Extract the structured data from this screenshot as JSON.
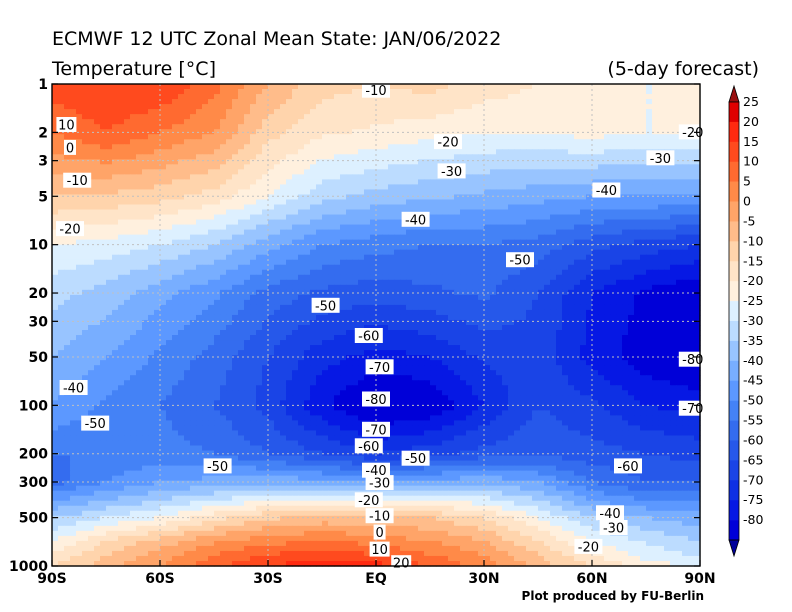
{
  "chart_data": {
    "type": "heatmap",
    "title": "ECMWF 12 UTC Zonal Mean State: JAN/06/2022",
    "subtitle": "Temperature [°C]",
    "forecast_note": "(5-day forecast)",
    "credit": "Plot produced by FU-Berlin",
    "xlabel": "",
    "ylabel": "",
    "x_ticks": [
      "90S",
      "60S",
      "30S",
      "EQ",
      "30N",
      "60N",
      "90N"
    ],
    "x_tick_values": [
      -90,
      -60,
      -30,
      0,
      30,
      60,
      90
    ],
    "y_ticks": [
      "1",
      "2",
      "3",
      "5",
      "10",
      "20",
      "30",
      "50",
      "100",
      "200",
      "300",
      "500",
      "1000"
    ],
    "y_tick_values": [
      1,
      2,
      3,
      5,
      10,
      20,
      30,
      50,
      100,
      200,
      300,
      500,
      1000
    ],
    "y_scale": "log",
    "y_inverted": true,
    "xlim": [
      -90,
      90
    ],
    "ylim": [
      1000,
      1
    ],
    "grid": true,
    "colorbar": {
      "labels": [
        "25",
        "20",
        "15",
        "10",
        "5",
        "0",
        "-5",
        "-10",
        "-15",
        "-20",
        "-25",
        "-30",
        "-35",
        "-40",
        "-45",
        "-50",
        "-55",
        "-60",
        "-65",
        "-70",
        "-75",
        "-80"
      ],
      "levels": [
        25,
        20,
        15,
        10,
        5,
        0,
        -5,
        -10,
        -15,
        -20,
        -25,
        -30,
        -35,
        -40,
        -45,
        -50,
        -55,
        -60,
        -65,
        -70,
        -75,
        -80
      ],
      "colors": [
        "#e00000",
        "#ff2a10",
        "#ff4a1e",
        "#ff6a30",
        "#ff8a48",
        "#ffa468",
        "#ffbc8a",
        "#ffd4ac",
        "#ffe4c8",
        "#fff0de",
        "#ddf0ff",
        "#bcdcff",
        "#98c4ff",
        "#78aeff",
        "#5c98ff",
        "#4482f6",
        "#346cef",
        "#2658ea",
        "#1a44e6",
        "#0e30e4",
        "#0618e4",
        "#0000d8"
      ]
    },
    "lat": [
      -90,
      -75,
      -60,
      -45,
      -30,
      -15,
      0,
      15,
      30,
      45,
      60,
      75,
      90
    ],
    "pressure": [
      1,
      2,
      5,
      10,
      20,
      50,
      100,
      200,
      300,
      500,
      700,
      850,
      1000
    ],
    "values": [
      [
        18,
        20,
        20,
        12,
        0,
        -8,
        -10,
        -8,
        -12,
        -15,
        -20,
        -20,
        -20
      ],
      [
        10,
        15,
        10,
        5,
        -8,
        -14,
        -16,
        -18,
        -20,
        -20,
        -18,
        -20,
        -20
      ],
      [
        -5,
        -6,
        -8,
        -12,
        -20,
        -28,
        -32,
        -34,
        -36,
        -38,
        -40,
        -40,
        -40
      ],
      [
        -20,
        -22,
        -25,
        -30,
        -38,
        -45,
        -48,
        -50,
        -50,
        -52,
        -58,
        -62,
        -65
      ],
      [
        -28,
        -32,
        -38,
        -44,
        -52,
        -56,
        -58,
        -56,
        -54,
        -60,
        -70,
        -76,
        -80
      ],
      [
        -35,
        -40,
        -46,
        -52,
        -60,
        -68,
        -72,
        -70,
        -64,
        -62,
        -72,
        -78,
        -82
      ],
      [
        -40,
        -46,
        -50,
        -55,
        -62,
        -74,
        -82,
        -80,
        -70,
        -60,
        -64,
        -70,
        -72
      ],
      [
        -50,
        -50,
        -48,
        -50,
        -55,
        -60,
        -65,
        -62,
        -58,
        -56,
        -58,
        -60,
        -62
      ],
      [
        -52,
        -45,
        -40,
        -38,
        -36,
        -38,
        -40,
        -38,
        -36,
        -40,
        -50,
        -55,
        -55
      ],
      [
        -30,
        -25,
        -20,
        -12,
        -6,
        -3,
        -4,
        -5,
        -10,
        -20,
        -30,
        -35,
        -38
      ],
      [
        -20,
        -10,
        -3,
        4,
        8,
        10,
        8,
        5,
        0,
        -10,
        -20,
        -26,
        -30
      ],
      [
        -15,
        -5,
        2,
        10,
        15,
        18,
        15,
        10,
        5,
        -5,
        -15,
        -22,
        -26
      ],
      [
        -10,
        -2,
        5,
        14,
        20,
        24,
        22,
        15,
        8,
        -2,
        -10,
        -18,
        -20
      ]
    ],
    "contour_labels": [
      {
        "text": "10",
        "x": -86,
        "y": 1.8
      },
      {
        "text": "0",
        "x": -85,
        "y": 2.5
      },
      {
        "text": "-10",
        "x": -83,
        "y": 4.0
      },
      {
        "text": "-20",
        "x": -85,
        "y": 8.0
      },
      {
        "text": "-40",
        "x": -84,
        "y": 78
      },
      {
        "text": "-50",
        "x": -78,
        "y": 130
      },
      {
        "text": "-50",
        "x": -44,
        "y": 240
      },
      {
        "text": "-10",
        "x": 0,
        "y": 1.1
      },
      {
        "text": "-20",
        "x": 20,
        "y": 2.3
      },
      {
        "text": "-30",
        "x": 21,
        "y": 3.5
      },
      {
        "text": "-40",
        "x": 11,
        "y": 7.0
      },
      {
        "text": "-50",
        "x": 40,
        "y": 12.5
      },
      {
        "text": "-50",
        "x": -14,
        "y": 24
      },
      {
        "text": "-60",
        "x": -2,
        "y": 37
      },
      {
        "text": "-70",
        "x": 1,
        "y": 58
      },
      {
        "text": "-80",
        "x": 0,
        "y": 92
      },
      {
        "text": "-70",
        "x": 0,
        "y": 142
      },
      {
        "text": "-60",
        "x": -2,
        "y": 180
      },
      {
        "text": "-50",
        "x": 11,
        "y": 215
      },
      {
        "text": "-40",
        "x": 0,
        "y": 255
      },
      {
        "text": "-30",
        "x": 1,
        "y": 305
      },
      {
        "text": "-20",
        "x": -2,
        "y": 390
      },
      {
        "text": "-10",
        "x": 1,
        "y": 490
      },
      {
        "text": "0",
        "x": 1,
        "y": 620
      },
      {
        "text": "10",
        "x": 1,
        "y": 790
      },
      {
        "text": "20",
        "x": 7,
        "y": 960
      },
      {
        "text": "-20",
        "x": 88,
        "y": 2.0
      },
      {
        "text": "-30",
        "x": 79,
        "y": 2.9
      },
      {
        "text": "-40",
        "x": 64,
        "y": 4.6
      },
      {
        "text": "-80",
        "x": 88,
        "y": 52
      },
      {
        "text": "-70",
        "x": 88,
        "y": 105
      },
      {
        "text": "-60",
        "x": 70,
        "y": 240
      },
      {
        "text": "-40",
        "x": 65,
        "y": 470
      },
      {
        "text": "-30",
        "x": 66,
        "y": 580
      },
      {
        "text": "-20",
        "x": 59,
        "y": 760
      }
    ]
  }
}
